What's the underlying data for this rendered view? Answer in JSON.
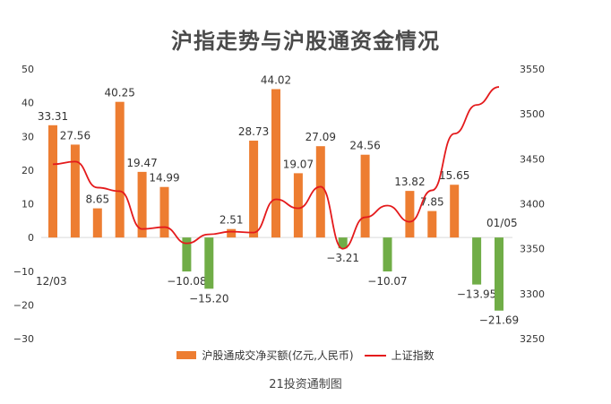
{
  "chart_data": {
    "type": "bar",
    "title": "沪指走势与沪股通资金情况",
    "footer": "21投资通制图",
    "series": [
      {
        "name": "沪股通成交净买额(亿元,人民币)",
        "type": "bar",
        "axis": "left",
        "color_positive": "#ED7D31",
        "color_negative": "#70AD47",
        "values": [
          33.31,
          27.56,
          8.65,
          40.25,
          19.47,
          14.99,
          -10.08,
          -15.2,
          2.51,
          28.73,
          44.02,
          19.07,
          27.09,
          -3.21,
          24.56,
          -10.07,
          13.82,
          7.85,
          15.65,
          -13.95,
          -21.69
        ],
        "labels": [
          "33.31",
          "27.56",
          "8.65",
          "40.25",
          "19.47",
          "14.99",
          "−10.08",
          "−15.20",
          "2.51",
          "28.73",
          "44.02",
          "19.07",
          "27.09",
          "−3.21",
          "24.56",
          "−10.07",
          "13.82",
          "7.85",
          "15.65",
          "−13.95",
          "−21.69"
        ]
      },
      {
        "name": "上证指数",
        "type": "line",
        "axis": "right",
        "color": "#E41A1C",
        "values": [
          3444,
          3447,
          3418,
          3414,
          3372,
          3374,
          3356,
          3366,
          3369,
          3368,
          3405,
          3395,
          3419,
          3350,
          3385,
          3398,
          3380,
          3415,
          3478,
          3510,
          3530
        ]
      }
    ],
    "x_start_label": "12/03",
    "x_end_label": "01/05",
    "y_left": {
      "min": -30,
      "max": 50,
      "ticks": [
        "50",
        "40",
        "30",
        "20",
        "10",
        "0",
        "−10",
        "−20",
        "−30"
      ]
    },
    "y_right": {
      "min": 3250,
      "max": 3550,
      "ticks": [
        "3550",
        "3500",
        "3450",
        "3400",
        "3350",
        "3300",
        "3250"
      ]
    },
    "legend": [
      "沪股通成交净买额(亿元,人民币)",
      "上证指数"
    ],
    "legend_position": "bottom",
    "grid": false
  }
}
